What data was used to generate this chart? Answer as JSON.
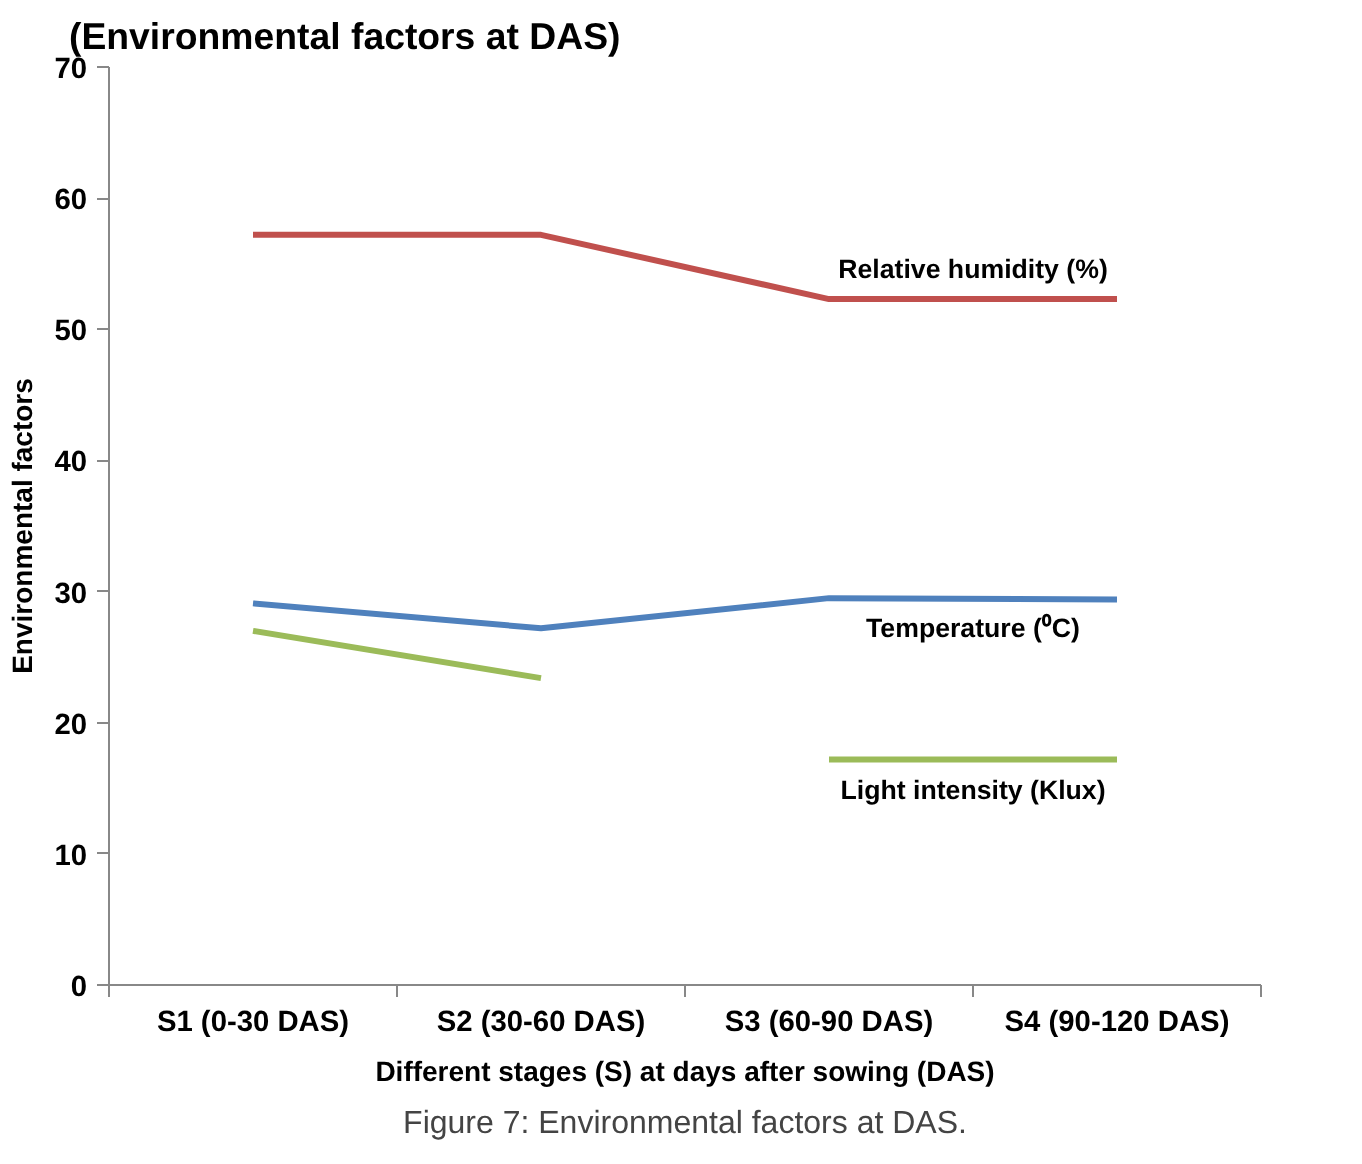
{
  "chart_data": {
    "type": "line",
    "title": "(Environmental factors  at DAS)",
    "xlabel": "Different stages (S) at days after sowing (DAS)",
    "ylabel": "Environmental factors",
    "categories": [
      "S1 (0-30 DAS)",
      "S2 (30-60 DAS)",
      "S3 (60-90 DAS)",
      "S4 (90-120 DAS)"
    ],
    "series": [
      {
        "name": "Relative humidity (%)",
        "color": "#c0504d",
        "values": [
          57.2,
          57.2,
          52.3,
          52.3
        ]
      },
      {
        "name": "Temperature (⁰C)",
        "color": "#4f81bd",
        "values": [
          29.1,
          27.2,
          29.5,
          29.4
        ]
      },
      {
        "color": "#9bbb59",
        "values": [
          27.0,
          23.4,
          null,
          null
        ]
      },
      {
        "name": "Light intensity (Klux)",
        "color": "#9bbb59",
        "values": [
          null,
          null,
          17.2,
          17.2
        ]
      }
    ],
    "ylim": [
      0,
      70
    ],
    "yticks": [
      0,
      10,
      20,
      30,
      40,
      50,
      60,
      70
    ],
    "grid": false,
    "annotations": [
      "Figure 7: Environmental factors at DAS."
    ]
  }
}
